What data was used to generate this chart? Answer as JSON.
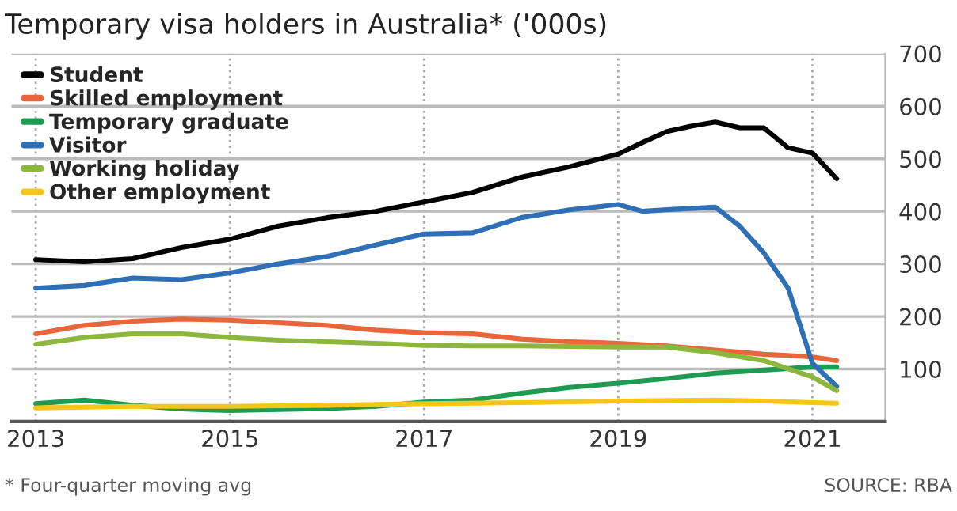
{
  "chart_data": {
    "type": "line",
    "title": "Temporary visa holders in Australia* ('000s)",
    "annotations": [
      "* Four-quarter moving avg",
      "SOURCE: RBA"
    ],
    "series": [
      {
        "name": "Student",
        "color": "#000000",
        "x": [
          2013,
          2013.5,
          2014,
          2014.5,
          2015,
          2015.5,
          2016,
          2016.5,
          2017,
          2017.5,
          2018,
          2018.5,
          2019,
          2019.25,
          2019.5,
          2019.75,
          2020,
          2020.25,
          2020.5,
          2020.75,
          2021,
          2021.25
        ],
        "values": [
          308,
          304,
          310,
          331,
          347,
          372,
          388,
          400,
          418,
          436,
          465,
          485,
          509,
          531,
          552,
          562,
          570,
          559,
          559,
          521,
          511,
          462
        ]
      },
      {
        "name": "Skilled employment",
        "color": "#e8663a",
        "x": [
          2013,
          2013.5,
          2014,
          2014.5,
          2015,
          2015.5,
          2016,
          2016.5,
          2017,
          2017.5,
          2018,
          2018.5,
          2019,
          2019.5,
          2020,
          2020.5,
          2020.75,
          2021,
          2021.25
        ],
        "values": [
          167,
          183,
          191,
          195,
          193,
          188,
          183,
          174,
          169,
          167,
          157,
          152,
          149,
          144,
          136,
          128,
          126,
          123,
          116
        ]
      },
      {
        "name": "Temporary graduate",
        "color": "#1e9a52",
        "x": [
          2013,
          2013.5,
          2014,
          2014.5,
          2015,
          2015.5,
          2016,
          2016.5,
          2017,
          2017.5,
          2018,
          2018.5,
          2019,
          2019.5,
          2020,
          2020.5,
          2021,
          2021.25
        ],
        "values": [
          34,
          41,
          31,
          24,
          21,
          23,
          25,
          29,
          37,
          41,
          54,
          65,
          73,
          82,
          92,
          98,
          104,
          104
        ]
      },
      {
        "name": "Visitor",
        "color": "#2f6fb5",
        "x": [
          2013,
          2013.5,
          2014,
          2014.5,
          2015,
          2015.5,
          2016,
          2016.5,
          2017,
          2017.5,
          2018,
          2018.5,
          2019,
          2019.25,
          2019.5,
          2020,
          2020.25,
          2020.5,
          2020.75,
          2021,
          2021.25
        ],
        "values": [
          254,
          259,
          273,
          270,
          283,
          300,
          314,
          336,
          357,
          359,
          388,
          403,
          413,
          400,
          403,
          408,
          372,
          321,
          254,
          111,
          67
        ]
      },
      {
        "name": "Working holiday",
        "color": "#8cb63c",
        "x": [
          2013,
          2013.5,
          2014,
          2014.5,
          2015,
          2015.5,
          2016,
          2016.5,
          2017,
          2017.5,
          2018,
          2019,
          2019.5,
          2020,
          2020.5,
          2021,
          2021.25
        ],
        "values": [
          147,
          160,
          167,
          167,
          160,
          155,
          152,
          149,
          145,
          144,
          144,
          142,
          142,
          131,
          116,
          85,
          59
        ]
      },
      {
        "name": "Other employment",
        "color": "#f5c518",
        "x": [
          2013,
          2014,
          2015,
          2016,
          2017,
          2018,
          2019,
          2020,
          2020.5,
          2021,
          2021.25
        ],
        "values": [
          26,
          29,
          29,
          31,
          34,
          36,
          39,
          41,
          39,
          36,
          35
        ]
      }
    ],
    "xlim": [
      2012.75,
      2021.75
    ],
    "xticks": [
      2013,
      2015,
      2017,
      2019,
      2021
    ],
    "ylim": [
      0,
      700
    ],
    "yticks": [
      100,
      200,
      300,
      400,
      500,
      600,
      700
    ],
    "grid": true,
    "legend": "top left",
    "line_style": "solid"
  }
}
